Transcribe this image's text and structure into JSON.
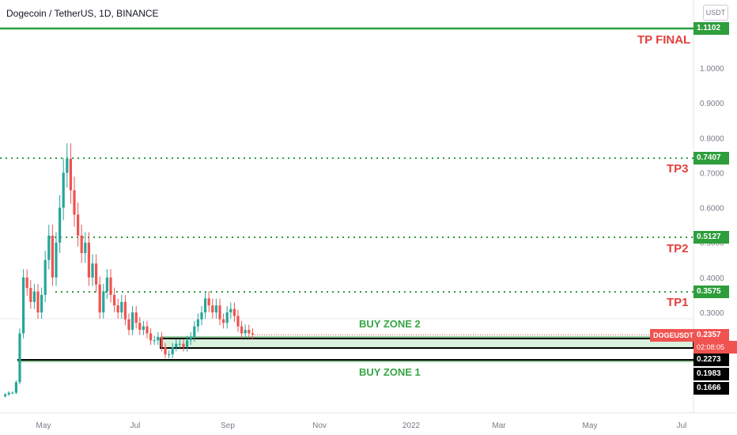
{
  "header": {
    "title": "Dogecoin / TetherUS, 1D, BINANCE",
    "currency_button": "USDT"
  },
  "colors": {
    "green_line": "#2e9e3c",
    "red_text": "#e2403c",
    "zone_fill": "#d9f0dc",
    "candle_up": "#26a69a",
    "candle_down": "#ef5350",
    "price_tag": "#f05350"
  },
  "annotations": {
    "tp_final": "TP FINAL",
    "tp3": "TP3",
    "tp2": "TP2",
    "tp1": "TP1",
    "buy_zone_2": "BUY ZONE 2",
    "buy_zone_1": "BUY ZONE 1"
  },
  "price_tags": {
    "tp_final": "1.1102",
    "tp3": "0.7407",
    "tp2": "0.5127",
    "tp1": "0.3575",
    "symbol": "DOGEUSDT",
    "last_price": "0.2357",
    "countdown": "02:08:05",
    "zone_top": "0.2273",
    "zone_mid": "0.1983",
    "zone_low": "0.1666"
  },
  "chart_data": {
    "type": "candlestick",
    "title": "Dogecoin / TetherUS, 1D, BINANCE",
    "y_ticks": [
      "1.0000",
      "0.9000",
      "0.8000",
      "0.7000",
      "0.6000",
      "0.5000",
      "0.4000",
      "0.3000"
    ],
    "y_tick_values": [
      1.0,
      0.9,
      0.8,
      0.7,
      0.6,
      0.5,
      0.4,
      0.3
    ],
    "x_ticks": [
      "May",
      "Jul",
      "Sep",
      "Nov",
      "2022",
      "Mar",
      "May",
      "Jul"
    ],
    "levels": [
      {
        "name": "TP FINAL",
        "value": 1.1102,
        "style": "solid"
      },
      {
        "name": "TP3",
        "value": 0.7407,
        "style": "dotted"
      },
      {
        "name": "TP2",
        "value": 0.5127,
        "style": "dotted"
      },
      {
        "name": "TP1",
        "value": 0.3575,
        "style": "dotted"
      }
    ],
    "zones": [
      {
        "name": "BUY ZONE 2",
        "top": 0.2273,
        "bottom": 0.1983
      },
      {
        "name": "BUY ZONE 1",
        "value": 0.1666
      }
    ],
    "last_price": 0.2357,
    "price_path": [
      0.06,
      0.065,
      0.07,
      0.07,
      0.1,
      0.24,
      0.4,
      0.37,
      0.33,
      0.36,
      0.3,
      0.35,
      0.45,
      0.52,
      0.4,
      0.5,
      0.6,
      0.7,
      0.74,
      0.65,
      0.58,
      0.52,
      0.47,
      0.5,
      0.4,
      0.44,
      0.38,
      0.3,
      0.36,
      0.4,
      0.35,
      0.32,
      0.3,
      0.33,
      0.28,
      0.25,
      0.3,
      0.27,
      0.25,
      0.26,
      0.24,
      0.22,
      0.22,
      0.23,
      0.2,
      0.18,
      0.18,
      0.2,
      0.21,
      0.21,
      0.2,
      0.22,
      0.23,
      0.26,
      0.28,
      0.3,
      0.34,
      0.32,
      0.3,
      0.32,
      0.28,
      0.27,
      0.3,
      0.31,
      0.29,
      0.26,
      0.24,
      0.25,
      0.24,
      0.236
    ]
  }
}
